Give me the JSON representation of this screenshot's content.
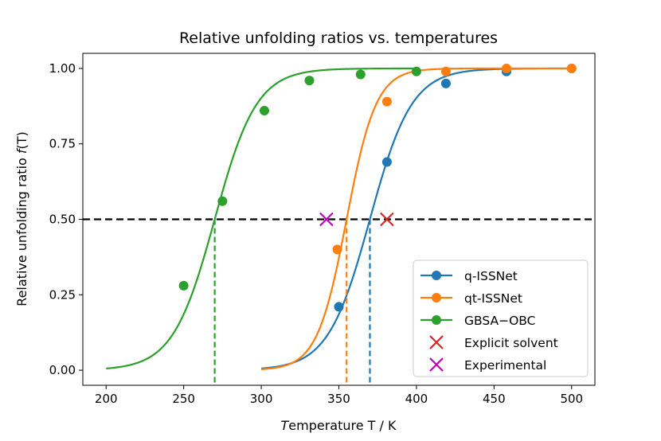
{
  "chart_data": {
    "type": "line",
    "title": "Relative unfolding ratios vs. temperatures",
    "xlabel": "Temperature T / K",
    "ylabel": "Relative unfolding ratio f(T)",
    "xlim": [
      185,
      515
    ],
    "ylim": [
      -0.05,
      1.05
    ],
    "xticks": [
      200,
      250,
      300,
      350,
      400,
      450,
      500
    ],
    "yticks": [
      0.0,
      0.25,
      0.5,
      0.75,
      1.0
    ],
    "xtick_labels": [
      "200",
      "250",
      "300",
      "350",
      "400",
      "450",
      "500"
    ],
    "ytick_labels": [
      "0.00",
      "0.25",
      "0.50",
      "0.75",
      "1.00"
    ],
    "grid": false,
    "legend_position": "lower-right",
    "reference_line": {
      "y": 0.5,
      "style": "dashed",
      "color": "#000000"
    },
    "series": [
      {
        "name": "q-ISSNet",
        "color": "#1f77b4",
        "points": [
          [
            350,
            0.21
          ],
          [
            381,
            0.69
          ],
          [
            419,
            0.95
          ],
          [
            458,
            0.99
          ],
          [
            500,
            1.0
          ]
        ],
        "fit": {
          "tm": 370,
          "width": 13.5,
          "x_range": [
            300,
            500
          ]
        },
        "tm_marker": 370
      },
      {
        "name": "qt-ISSNet",
        "color": "#ff7f0e",
        "points": [
          [
            349,
            0.4
          ],
          [
            381,
            0.89
          ],
          [
            419,
            0.99
          ],
          [
            458,
            1.0
          ],
          [
            500,
            1.0
          ]
        ],
        "fit": {
          "tm": 355,
          "width": 9.5,
          "x_range": [
            300,
            500
          ]
        },
        "tm_marker": 355
      },
      {
        "name": "GBSA−OBC",
        "color": "#2ca02c",
        "points": [
          [
            250,
            0.28
          ],
          [
            275,
            0.56
          ],
          [
            302,
            0.86
          ],
          [
            331,
            0.96
          ],
          [
            364,
            0.98
          ],
          [
            400,
            0.99
          ]
        ],
        "fit": {
          "tm": 270,
          "width": 13.5,
          "x_range": [
            200,
            400
          ]
        },
        "tm_marker": 270
      }
    ],
    "markers": [
      {
        "name": "Explicit solvent",
        "color": "#d62728",
        "x": 381,
        "y": 0.5
      },
      {
        "name": "Experimental",
        "color": "#bf00bf",
        "x": 342,
        "y": 0.5
      }
    ]
  }
}
